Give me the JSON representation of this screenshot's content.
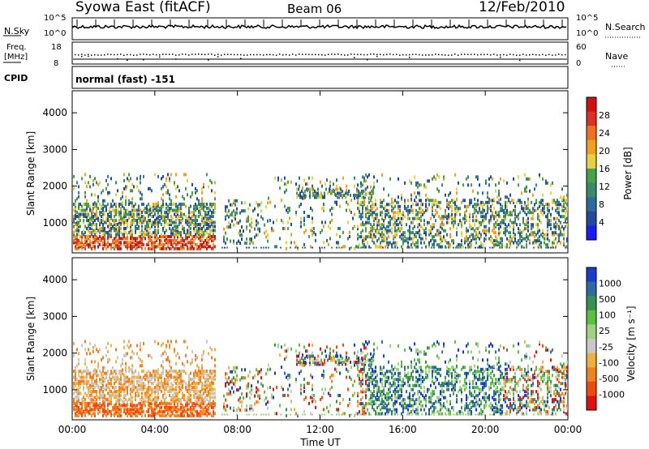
{
  "header": {
    "title": "Syowa East (fitACF)",
    "beam": "Beam 06",
    "date": "12/Feb/2010"
  },
  "panels": {
    "nsky": {
      "label": "N.Sky",
      "ticks_left": [
        "10^5",
        "10^0"
      ],
      "right_label": "N.Search",
      "ticks_right": [
        "10^5",
        "10^0"
      ]
    },
    "freq": {
      "label_line1": "Freq.",
      "label_line2": "[MHz]",
      "ticks_left": [
        "18",
        "8"
      ],
      "right_label": "Nave",
      "ticks_right": [
        "60",
        "0"
      ]
    },
    "cpid": {
      "label": "CPID",
      "text": "normal (fast) -151"
    }
  },
  "colors": {
    "power_scale": [
      "#1a1aff",
      "#1f4aa0",
      "#2d6a9e",
      "#3a8a6a",
      "#4aa04a",
      "#e6d23c",
      "#f0a020",
      "#f07020",
      "#e03020",
      "#d01010"
    ],
    "velocity_scale": [
      "#e01010",
      "#f04a10",
      "#f08020",
      "#f0b040",
      "#c8c8c8",
      "#a0d080",
      "#5ac040",
      "#3a9050",
      "#2f6aa0",
      "#1a3ad0"
    ]
  },
  "chart_data": [
    {
      "type": "heatmap",
      "name": "power-panel",
      "ylabel": "Slant Range [km]",
      "yticks": [
        1000,
        2000,
        3000,
        4000
      ],
      "ylim": [
        180,
        4600
      ],
      "colorbar": {
        "label": "Power [dB]",
        "ticks": [
          4,
          8,
          12,
          16,
          20,
          24,
          28
        ],
        "range": [
          0,
          32
        ]
      }
    },
    {
      "type": "heatmap",
      "name": "velocity-panel",
      "ylabel": "Slant Range [km]",
      "yticks": [
        1000,
        2000,
        3000,
        4000
      ],
      "ylim": [
        180,
        4600
      ],
      "xlabel": "Time UT",
      "xticks": [
        "00:00",
        "04:00",
        "08:00",
        "12:00",
        "16:00",
        "20:00",
        "00:00"
      ],
      "colorbar": {
        "label": "Velocity [m s⁻¹]",
        "ticks": [
          "1000",
          "500",
          "100",
          "25",
          "-25",
          "-100",
          "-500",
          "-1000"
        ]
      }
    }
  ]
}
